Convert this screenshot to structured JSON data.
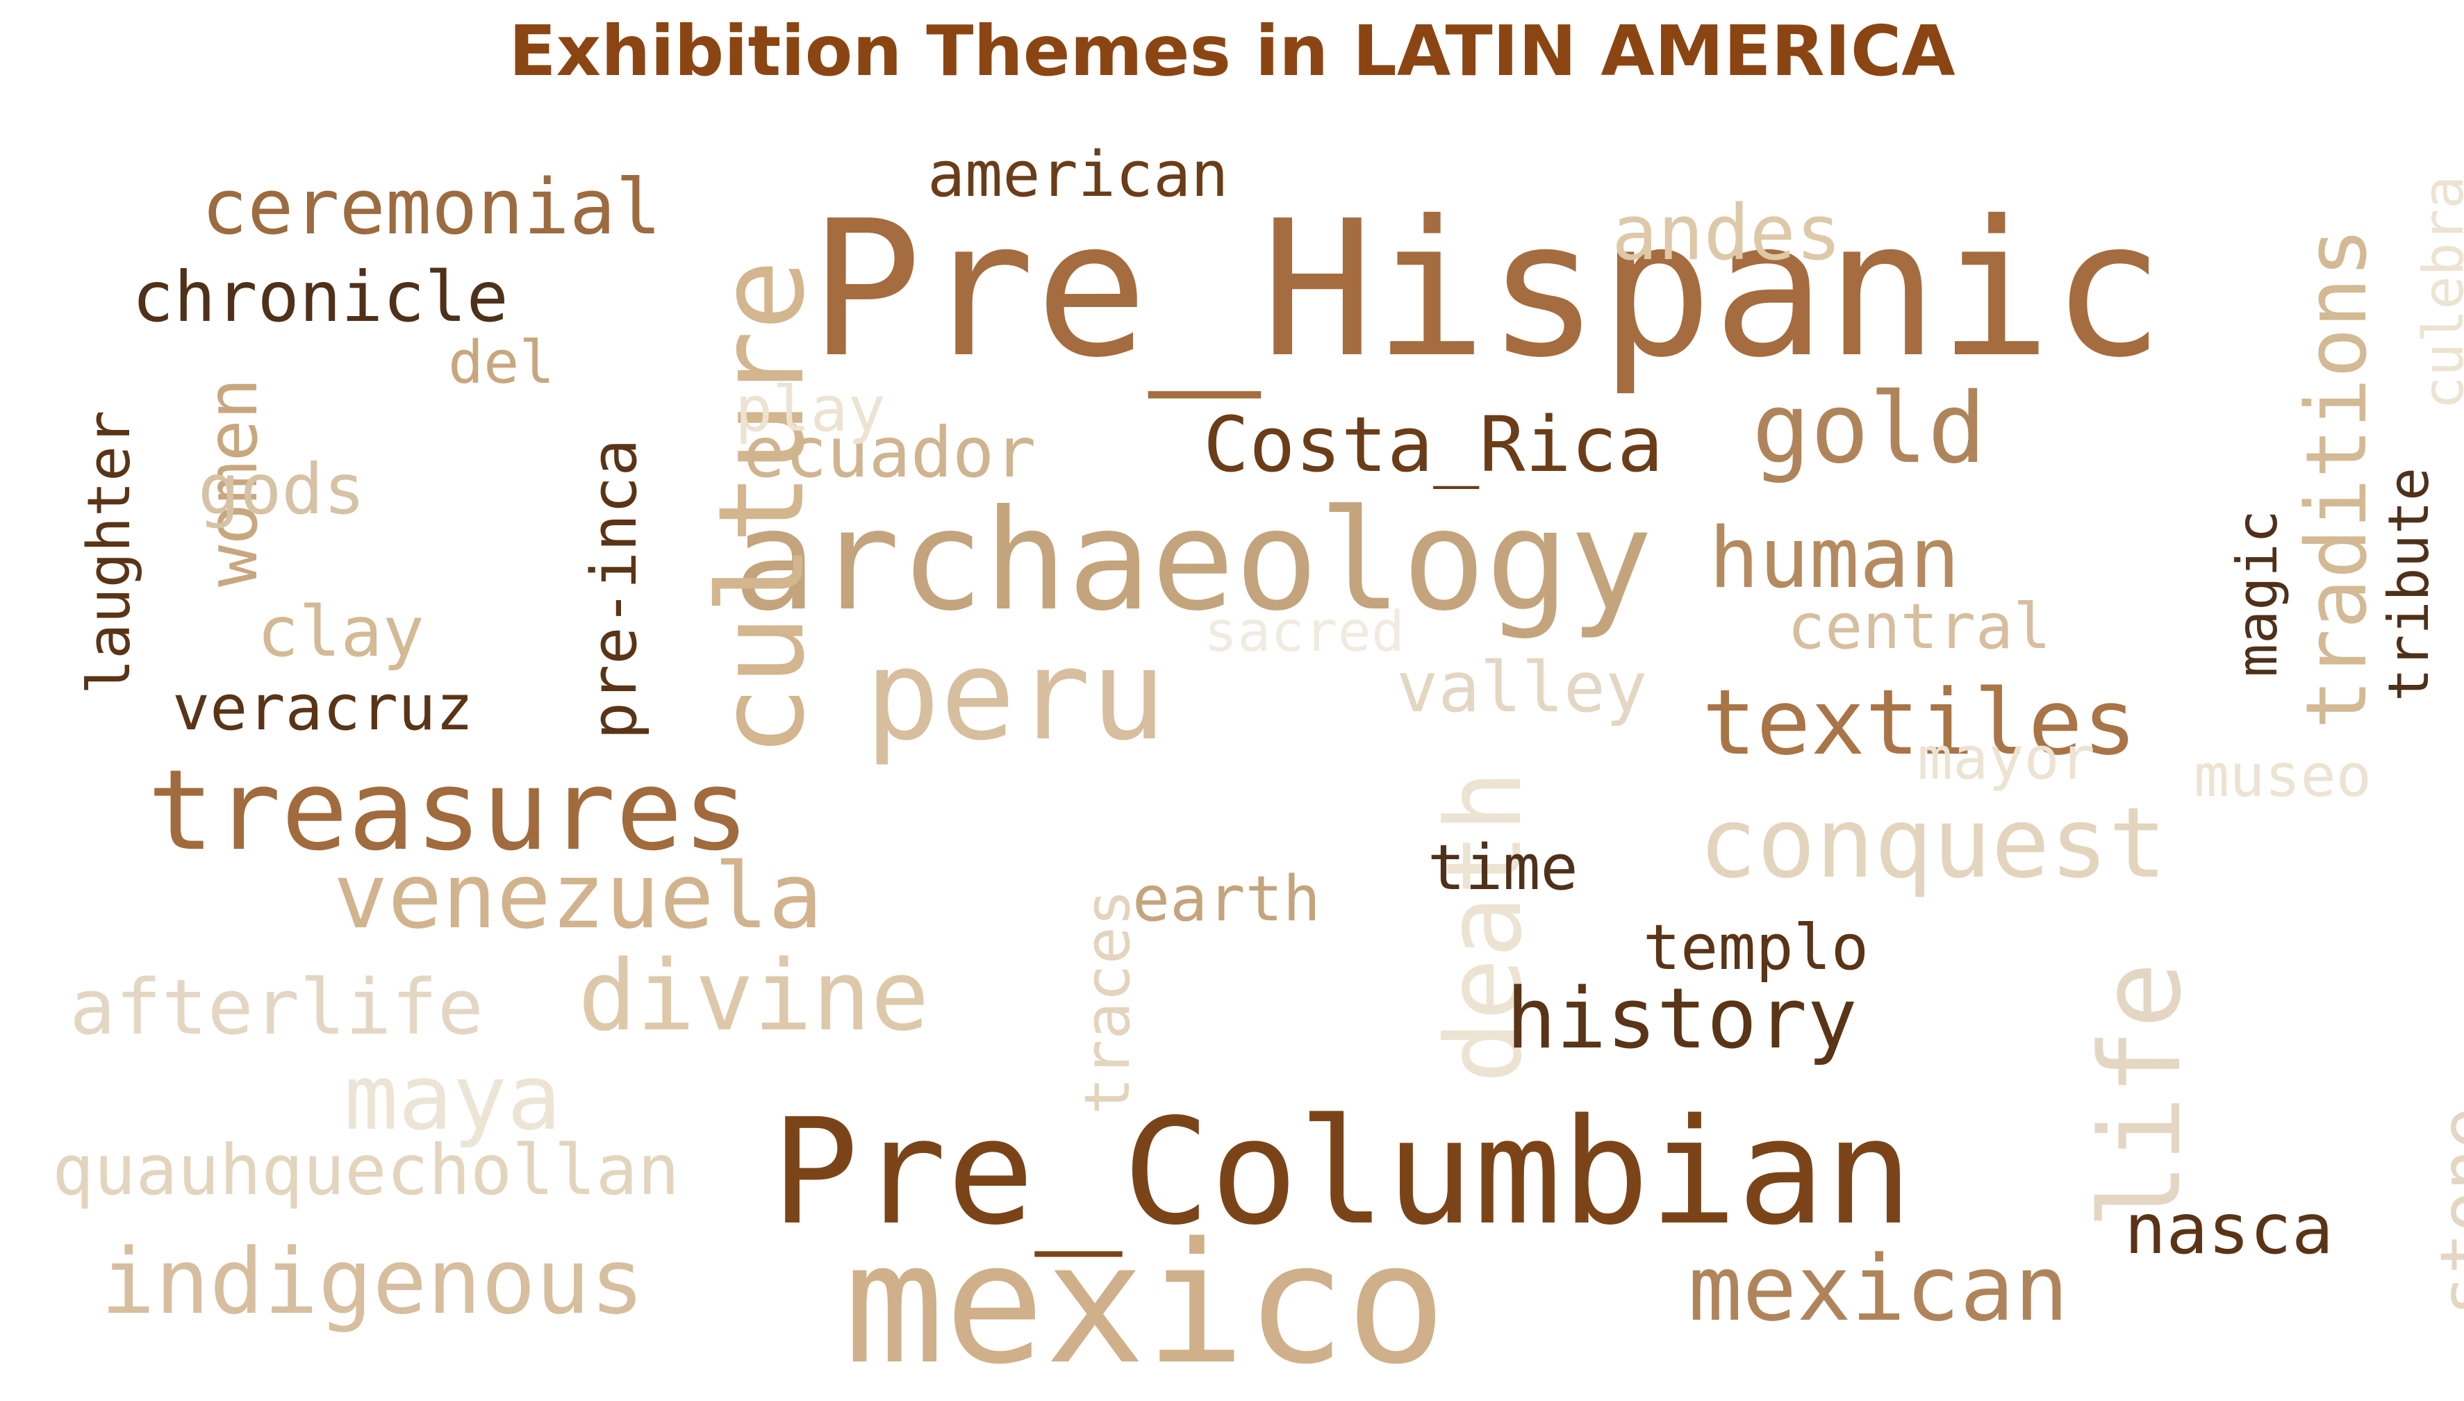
{
  "title": "Exhibition Themes in LATIN AMERICA",
  "colors": {
    "title": "#8b4513",
    "darkest": "#5a3416",
    "dark": "#7b4418",
    "mid_dark": "#a16b3e",
    "mid": "#b0845a",
    "mid_light": "#c4a47c",
    "light": "#d6be9e",
    "lighter": "#e3d4bd",
    "lightest": "#ece3d2"
  },
  "words": [
    {
      "text": "Pre_Hispanic",
      "color": "#a56c3f"
    },
    {
      "text": "Pre_Columbian",
      "color": "#7b4418"
    },
    {
      "text": "mexico",
      "color": "#cfb08a"
    },
    {
      "text": "archaeology",
      "color": "#c4a47c"
    },
    {
      "text": "peru",
      "color": "#d6be9e"
    },
    {
      "text": "culture",
      "color": "#d3b58e"
    },
    {
      "text": "treasures",
      "color": "#a16b3e"
    },
    {
      "text": "life",
      "color": "#e3d7c4"
    },
    {
      "text": "death",
      "color": "#ece3d2"
    },
    {
      "text": "gold",
      "color": "#b0845a"
    },
    {
      "text": "conquest",
      "color": "#e3d4bd"
    },
    {
      "text": "textiles",
      "color": "#a97446"
    },
    {
      "text": "mexican",
      "color": "#b0845a"
    },
    {
      "text": "indigenous",
      "color": "#d6be9e"
    },
    {
      "text": "divine",
      "color": "#ddc9aa"
    },
    {
      "text": "venezuela",
      "color": "#d1b38d"
    },
    {
      "text": "Costa_Rica",
      "color": "#6a3d18"
    },
    {
      "text": "human",
      "color": "#b48a5e"
    },
    {
      "text": "traditions",
      "color": "#d3b994"
    },
    {
      "text": "maya",
      "color": "#ece5d6"
    },
    {
      "text": "history",
      "color": "#5a3416"
    },
    {
      "text": "ceremonial",
      "color": "#9c6b3f"
    },
    {
      "text": "chronicle",
      "color": "#4f3019"
    },
    {
      "text": "andes",
      "color": "#ddc8a8"
    },
    {
      "text": "american",
      "color": "#6a3d18"
    },
    {
      "text": "women",
      "color": "#c8a77f"
    },
    {
      "text": "gods",
      "color": "#d6c2a4"
    },
    {
      "text": "afterlife",
      "color": "#e3d7c4"
    },
    {
      "text": "quauhquechollan",
      "color": "#e3d4bd"
    },
    {
      "text": "ecuador",
      "color": "#cfb48f"
    },
    {
      "text": "clay",
      "color": "#d3b994"
    },
    {
      "text": "traces",
      "color": "#e3d4bd"
    },
    {
      "text": "nasca",
      "color": "#5a3416"
    },
    {
      "text": "stone",
      "color": "#e3d7c4"
    },
    {
      "text": "valley",
      "color": "#e3d7c4"
    },
    {
      "text": "central",
      "color": "#d6be9e"
    },
    {
      "text": "veracruz",
      "color": "#5a3416"
    },
    {
      "text": "pre-inca",
      "color": "#5a3416"
    },
    {
      "text": "play",
      "color": "#ece3d2"
    },
    {
      "text": "del",
      "color": "#c8a77f"
    },
    {
      "text": "laughter",
      "color": "#5a3416"
    },
    {
      "text": "sacred",
      "color": "#f0ebe0"
    },
    {
      "text": "earth",
      "color": "#c4a47c"
    },
    {
      "text": "time",
      "color": "#4f3019"
    },
    {
      "text": "templo",
      "color": "#5a3416"
    },
    {
      "text": "magic",
      "color": "#4f3019"
    },
    {
      "text": "tribute",
      "color": "#4f3019"
    },
    {
      "text": "culebra",
      "color": "#ece3d2"
    },
    {
      "text": "mayor",
      "color": "#ece3d2"
    },
    {
      "text": "museo",
      "color": "#ece3d2"
    }
  ]
}
